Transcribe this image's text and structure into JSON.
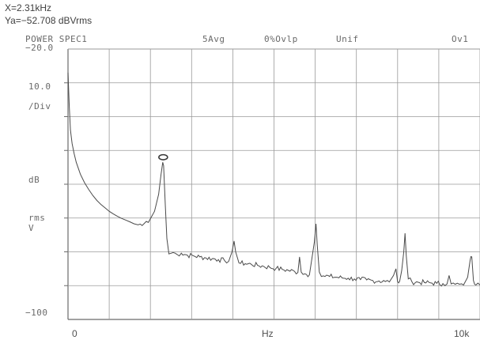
{
  "readout": {
    "x": "X=2.31kHz",
    "ya": "Ya=−52.708 dBVrms"
  },
  "header": {
    "trace": "POWER SPEC1",
    "averages": "5Avg",
    "overload": "0%Ovlp",
    "window": "Unif",
    "channel": "Ov1"
  },
  "y_axis": {
    "top_label": "−20.0",
    "scale": "10.0",
    "per_div": "/Div",
    "unit_db": "dB",
    "unit_rms": "rms",
    "unit_v": "V",
    "bottom_label": "−100"
  },
  "colors": {
    "grid": "#9a9a9a",
    "trace": "#4a4a4a",
    "text": "#6a6a6a"
  },
  "chart_data": {
    "type": "line",
    "xlabel": "Hz",
    "x_tick_labels": [
      "0",
      "Hz",
      "10k"
    ],
    "xlim": [
      0,
      10000
    ],
    "ylim": [
      -100,
      -20
    ],
    "grid": true,
    "y_divisions": 8,
    "x_divisions": 10,
    "marker": {
      "x": 2310,
      "y": -52.708
    },
    "series": [
      {
        "values": [
          [
            0,
            -27
          ],
          [
            30,
            -37
          ],
          [
            60,
            -44
          ],
          [
            100,
            -48
          ],
          [
            150,
            -51
          ],
          [
            200,
            -53.5
          ],
          [
            300,
            -57
          ],
          [
            400,
            -59.5
          ],
          [
            500,
            -61.5
          ],
          [
            600,
            -63.3
          ],
          [
            700,
            -64.8
          ],
          [
            800,
            -66
          ],
          [
            900,
            -67
          ],
          [
            1000,
            -68
          ],
          [
            1100,
            -68.8
          ],
          [
            1200,
            -69.5
          ],
          [
            1300,
            -70.1
          ],
          [
            1400,
            -70.6
          ],
          [
            1500,
            -71.1
          ],
          [
            1600,
            -71.7
          ],
          [
            1700,
            -72
          ],
          [
            1750,
            -71.8
          ],
          [
            1800,
            -72.2
          ],
          [
            1850,
            -71.6
          ],
          [
            1900,
            -71
          ],
          [
            1950,
            -71.3
          ],
          [
            2000,
            -70.2
          ],
          [
            2100,
            -68
          ],
          [
            2200,
            -63
          ],
          [
            2260,
            -57
          ],
          [
            2300,
            -53.5
          ],
          [
            2320,
            -54.5
          ],
          [
            2360,
            -66
          ],
          [
            2400,
            -76
          ],
          [
            2450,
            -80.6
          ],
          [
            2550,
            -80.2
          ],
          [
            2650,
            -80.8
          ],
          [
            2750,
            -80.4
          ],
          [
            2900,
            -81
          ],
          [
            3050,
            -81.2
          ],
          [
            3200,
            -81.5
          ],
          [
            3350,
            -81.8
          ],
          [
            3500,
            -82
          ],
          [
            3650,
            -82.3
          ],
          [
            3800,
            -82.6
          ],
          [
            3900,
            -82.8
          ],
          [
            3980,
            -80
          ],
          [
            4030,
            -76.8
          ],
          [
            4070,
            -80
          ],
          [
            4150,
            -83.3
          ],
          [
            4300,
            -83.5
          ],
          [
            4450,
            -83.7
          ],
          [
            4600,
            -84
          ],
          [
            4750,
            -84.3
          ],
          [
            4900,
            -84.6
          ],
          [
            5050,
            -84.9
          ],
          [
            5200,
            -85.2
          ],
          [
            5350,
            -85.5
          ],
          [
            5500,
            -85.8
          ],
          [
            5580,
            -86.1
          ],
          [
            5620,
            -81.5
          ],
          [
            5660,
            -86
          ],
          [
            5750,
            -86.5
          ],
          [
            5860,
            -86.8
          ],
          [
            5920,
            -82
          ],
          [
            5980,
            -77
          ],
          [
            6020,
            -71.7
          ],
          [
            6050,
            -78
          ],
          [
            6100,
            -86
          ],
          [
            6200,
            -87.1
          ],
          [
            6350,
            -87.3
          ],
          [
            6500,
            -87.5
          ],
          [
            6650,
            -87.7
          ],
          [
            6800,
            -87.8
          ],
          [
            6950,
            -88
          ],
          [
            7100,
            -88.2
          ],
          [
            7250,
            -88.3
          ],
          [
            7400,
            -88.5
          ],
          [
            7550,
            -88.6
          ],
          [
            7700,
            -88.8
          ],
          [
            7800,
            -88.9
          ],
          [
            7900,
            -87
          ],
          [
            7960,
            -85
          ],
          [
            8000,
            -88.9
          ],
          [
            8050,
            -88.7
          ],
          [
            8100,
            -85.5
          ],
          [
            8150,
            -80
          ],
          [
            8180,
            -74.5
          ],
          [
            8210,
            -81
          ],
          [
            8260,
            -88
          ],
          [
            8350,
            -88.9
          ],
          [
            8500,
            -89
          ],
          [
            8650,
            -89.1
          ],
          [
            8800,
            -89.2
          ],
          [
            8950,
            -89.3
          ],
          [
            9100,
            -89.4
          ],
          [
            9200,
            -89.5
          ],
          [
            9250,
            -87
          ],
          [
            9300,
            -89.5
          ],
          [
            9400,
            -89.6
          ],
          [
            9500,
            -89.6
          ],
          [
            9600,
            -89.8
          ],
          [
            9700,
            -87.5
          ],
          [
            9760,
            -82.5
          ],
          [
            9800,
            -81.5
          ],
          [
            9840,
            -88.5
          ],
          [
            9900,
            -89.8
          ],
          [
            10000,
            -89.8
          ]
        ]
      }
    ]
  }
}
